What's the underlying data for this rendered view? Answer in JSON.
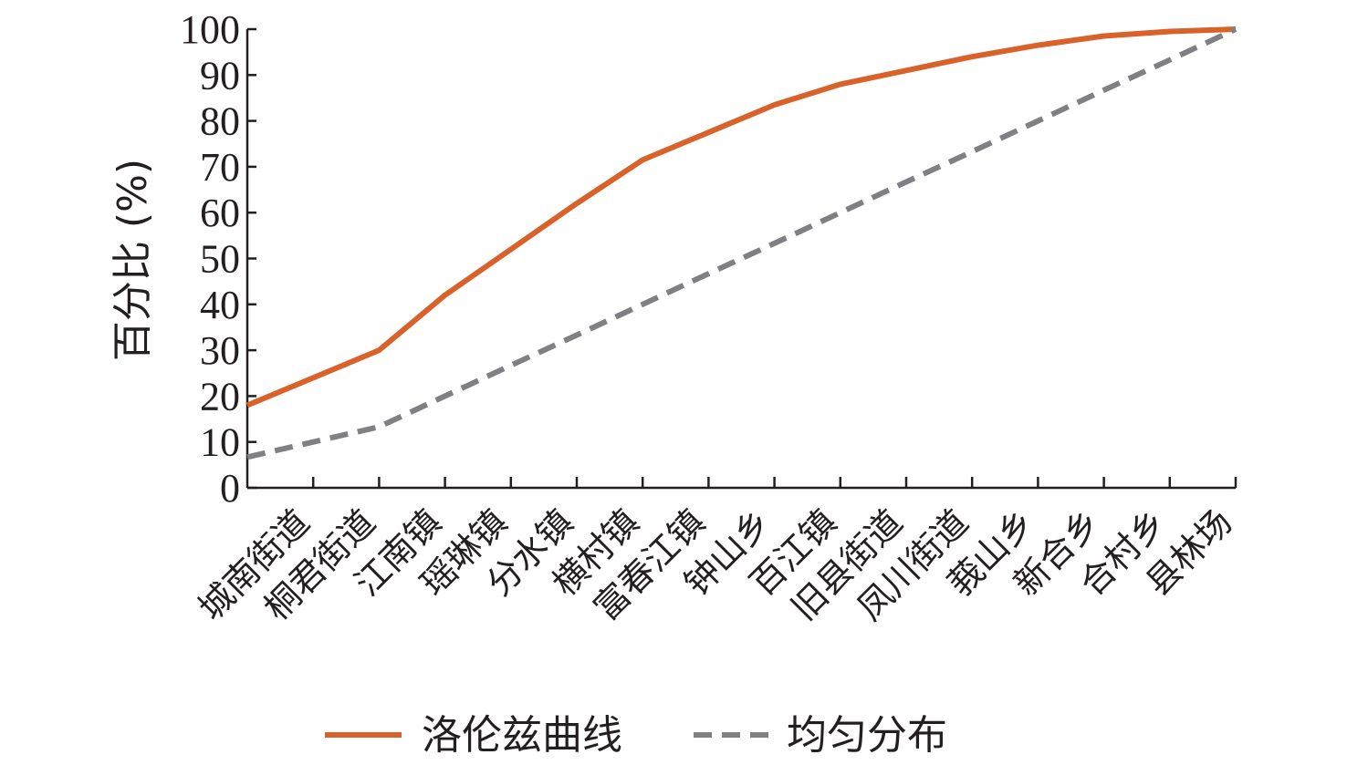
{
  "chart_data": {
    "type": "line",
    "ylabel": "百分比 (%)",
    "xlabel": "",
    "ylim": [
      0,
      100
    ],
    "yticks": [
      0,
      10,
      20,
      30,
      40,
      50,
      60,
      70,
      80,
      90,
      100
    ],
    "grid": false,
    "legend_position": "bottom",
    "categories": [
      "城南街道",
      "桐君街道",
      "江南镇",
      "瑶琳镇",
      "分水镇",
      "横村镇",
      "富春江镇",
      "钟山乡",
      "百江镇",
      "旧县街道",
      "凤川街道",
      "莪山乡",
      "新合乡",
      "合村乡",
      "县林场"
    ],
    "series": [
      {
        "name": "洛伦兹曲线",
        "color": "#d9622b",
        "style": "solid",
        "values": [
          18,
          30,
          42,
          52,
          62,
          71.5,
          77.5,
          83.5,
          88,
          91,
          94,
          96.5,
          98.5,
          99.5,
          100
        ]
      },
      {
        "name": "均匀分布",
        "color": "#7f7f84",
        "style": "dashed",
        "values": [
          6.7,
          13.3,
          20,
          26.7,
          33.3,
          40,
          46.7,
          53.3,
          60,
          66.7,
          73.3,
          80,
          86.7,
          93.3,
          100
        ]
      }
    ]
  }
}
